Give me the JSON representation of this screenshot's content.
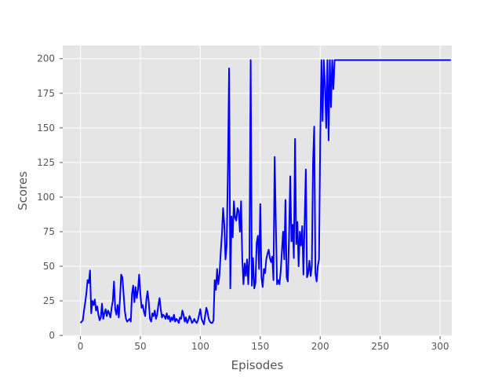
{
  "chart_data": {
    "type": "line",
    "title": "",
    "xlabel": "Episodes",
    "ylabel": "Scores",
    "xlim": [
      -14.75,
      309.75
    ],
    "ylim": [
      -0.5,
      209.5
    ],
    "xticks": [
      0,
      50,
      100,
      150,
      200,
      250,
      300
    ],
    "yticks": [
      0,
      25,
      50,
      75,
      100,
      125,
      150,
      175,
      200
    ],
    "grid": true,
    "style": "ggplot",
    "series": [
      {
        "color": "#0000ff",
        "values": [
          9,
          10,
          11,
          18,
          24,
          31,
          40,
          38,
          47,
          16,
          25,
          22,
          26,
          18,
          21,
          15,
          11,
          13,
          23,
          12,
          16,
          19,
          14,
          18,
          16,
          13,
          20,
          25,
          39,
          19,
          15,
          22,
          13,
          27,
          44,
          42,
          30,
          18,
          12,
          10,
          11,
          12,
          10,
          30,
          36,
          24,
          35,
          27,
          33,
          44,
          30,
          20,
          22,
          17,
          14,
          26,
          32,
          24,
          12,
          10,
          16,
          14,
          18,
          12,
          15,
          22,
          27,
          19,
          13,
          15,
          14,
          12,
          16,
          12,
          14,
          10,
          13,
          11,
          15,
          10,
          12,
          11,
          9,
          13,
          12,
          18,
          15,
          10,
          13,
          9,
          11,
          14,
          12,
          9,
          10,
          12,
          10,
          9,
          11,
          15,
          19,
          12,
          10,
          8,
          14,
          20,
          17,
          12,
          10,
          9,
          9,
          11,
          40,
          33,
          48,
          37,
          44,
          60,
          73,
          92,
          80,
          55,
          65,
          120,
          193,
          34,
          86,
          71,
          97,
          85,
          83,
          92,
          90,
          75,
          97,
          55,
          37,
          52,
          43,
          55,
          37,
          57,
          199,
          36,
          56,
          34,
          38,
          67,
          72,
          48,
          95,
          42,
          35,
          48,
          45,
          55,
          59,
          62,
          56,
          53,
          57,
          40,
          129,
          80,
          37,
          40,
          37,
          46,
          60,
          75,
          55,
          98,
          42,
          39,
          72,
          115,
          68,
          80,
          56,
          142,
          66,
          82,
          50,
          75,
          65,
          79,
          44,
          82,
          120,
          42,
          45,
          54,
          43,
          50,
          125,
          151,
          45,
          39,
          50,
          55,
          140,
          199,
          155,
          199,
          180,
          150,
          199,
          141,
          199,
          165,
          199,
          178,
          199,
          199,
          199,
          199,
          199,
          199,
          199,
          199,
          199,
          199,
          199,
          199,
          199,
          199,
          199,
          199,
          199,
          199,
          199,
          199,
          199,
          199,
          199,
          199,
          199,
          199,
          199,
          199,
          199,
          199,
          199,
          199,
          199,
          199,
          199,
          199,
          199,
          199,
          199,
          199,
          199,
          199,
          199,
          199,
          199,
          199,
          199,
          199,
          199,
          199,
          199,
          199,
          199,
          199,
          199,
          199,
          199,
          199,
          199,
          199,
          199,
          199,
          199,
          199,
          199,
          199,
          199,
          199,
          199,
          199,
          199,
          199,
          199,
          199,
          199,
          199,
          199,
          199,
          199,
          199,
          199,
          199,
          199,
          199,
          199,
          199,
          199,
          199,
          199,
          199,
          199,
          199,
          199,
          199,
          199,
          199,
          199,
          199
        ]
      }
    ]
  }
}
